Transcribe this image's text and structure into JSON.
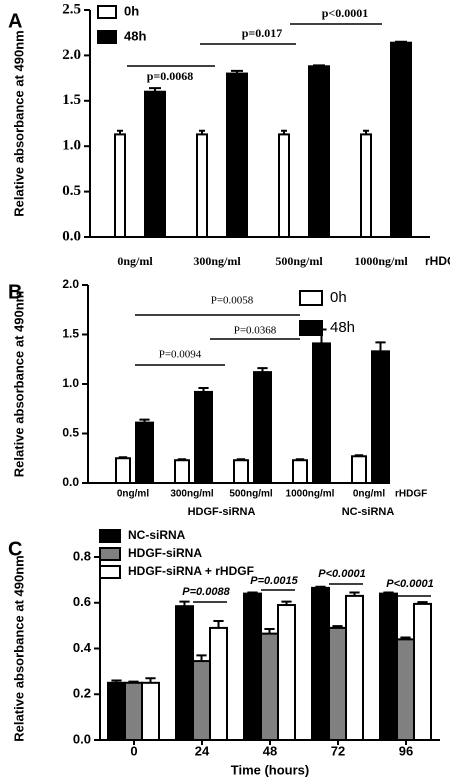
{
  "chart_data": [
    {
      "type": "bar",
      "panel": "A",
      "ylabel": "Relative absorbance at 490nm",
      "categories": [
        "0ng/ml",
        "300ng/ml",
        "500ng/ml",
        "1000ng/ml"
      ],
      "x_note": "rHDGF",
      "series": [
        {
          "name": "0h",
          "color": "#ffffff",
          "values": [
            1.13,
            1.13,
            1.13,
            1.13
          ],
          "errors": [
            0.04,
            0.04,
            0.04,
            0.04
          ]
        },
        {
          "name": "48h",
          "color": "#000000",
          "values": [
            1.6,
            1.8,
            1.88,
            2.14
          ],
          "errors": [
            0.04,
            0.03,
            0.01,
            0.01
          ]
        }
      ],
      "ylim": [
        0,
        2.5
      ],
      "yticks": [
        {
          "value": 0,
          "label": "0.0"
        },
        {
          "value": 0.5,
          "label": "0.5"
        },
        {
          "value": 1,
          "label": "1.0"
        },
        {
          "value": 1.5,
          "label": "1.5"
        },
        {
          "value": 2,
          "label": "2.0"
        },
        {
          "value": 2.5,
          "label": "2.5"
        }
      ],
      "annotations": [
        "p=0.0068",
        "p=0.017",
        "p<0.0001"
      ]
    },
    {
      "type": "bar",
      "panel": "B",
      "ylabel": "Relative absorbance at 490nm",
      "categories": [
        "0ng/ml",
        "300ng/ml",
        "500ng/ml",
        "1000ng/ml",
        "0ng/ml"
      ],
      "x_note": "rHDGF",
      "groups": [
        "HDGF-siRNA",
        "NC-siRNA"
      ],
      "series": [
        {
          "name": "0h",
          "color": "#ffffff",
          "values": [
            0.25,
            0.23,
            0.23,
            0.23,
            0.27
          ],
          "errors": [
            0.01,
            0.01,
            0.01,
            0.01,
            0.01
          ]
        },
        {
          "name": "48h",
          "color": "#000000",
          "values": [
            0.61,
            0.92,
            1.12,
            1.41,
            1.33
          ],
          "errors": [
            0.03,
            0.04,
            0.04,
            0.14,
            0.09
          ]
        }
      ],
      "ylim": [
        0,
        2
      ],
      "yticks": [
        {
          "value": 0,
          "label": "0.0"
        },
        {
          "value": 0.5,
          "label": "0.5"
        },
        {
          "value": 1,
          "label": "1.0"
        },
        {
          "value": 1.5,
          "label": "1.5"
        },
        {
          "value": 2,
          "label": "2.0"
        }
      ],
      "annotations": [
        "P=0.0094",
        "P=0.0368",
        "P=0.0058"
      ]
    },
    {
      "type": "bar",
      "panel": "C",
      "ylabel": "Relative absorbance at 490nm",
      "xlabel": "Time (hours)",
      "categories": [
        "0",
        "24",
        "48",
        "72",
        "96"
      ],
      "series": [
        {
          "name": "NC-siRNA",
          "color": "#000000",
          "values": [
            0.25,
            0.585,
            0.64,
            0.665,
            0.64
          ],
          "errors": [
            0.01,
            0.02,
            0.005,
            0.005,
            0.005
          ]
        },
        {
          "name": "HDGF-siRNA",
          "color": "#808080",
          "values": [
            0.25,
            0.345,
            0.465,
            0.49,
            0.44
          ],
          "errors": [
            0.005,
            0.025,
            0.02,
            0.008,
            0.008
          ]
        },
        {
          "name": "HDGF-siRNA + rHDGF",
          "color": "#ffffff",
          "values": [
            0.25,
            0.49,
            0.59,
            0.63,
            0.595
          ],
          "errors": [
            0.02,
            0.03,
            0.015,
            0.015,
            0.008
          ]
        }
      ],
      "ylim": [
        0,
        0.8
      ],
      "yticks": [
        {
          "value": 0,
          "label": "0.0"
        },
        {
          "value": 0.2,
          "label": "0.2"
        },
        {
          "value": 0.4,
          "label": "0.4"
        },
        {
          "value": 0.6,
          "label": "0.6"
        },
        {
          "value": 0.8,
          "label": "0.8"
        }
      ],
      "annotations": [
        "P=0.0088",
        "P=0.0015",
        "P<0.0001",
        "P<0.0001"
      ]
    }
  ]
}
